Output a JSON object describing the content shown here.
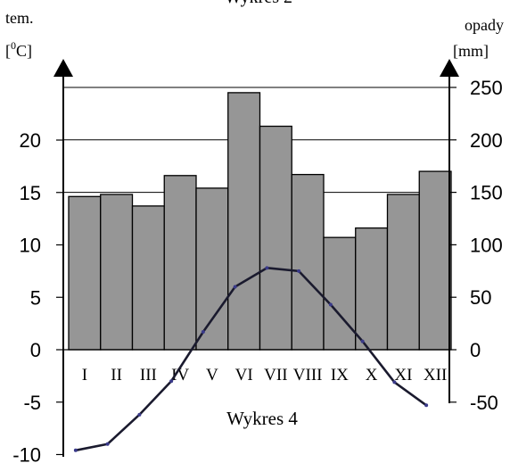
{
  "chart_data": {
    "type": "bar",
    "title": "Wykres 2",
    "caption": "Wykres 4",
    "left_axis": {
      "label_line1": "tem.",
      "label_line2": "[0C]",
      "label_prefix": "[",
      "label_sup": "0",
      "label_suffix": "C]",
      "ticks": [
        "20",
        "15",
        "10",
        "5",
        "0",
        "-5",
        "-10"
      ],
      "tick_values": [
        20,
        15,
        10,
        5,
        0,
        -5,
        -10
      ],
      "range": [
        -10,
        25
      ]
    },
    "right_axis": {
      "label_line1": "opady",
      "label_line2": "[mm]",
      "ticks": [
        "250",
        "200",
        "150",
        "100",
        "50",
        "0",
        "-50"
      ],
      "tick_values": [
        250,
        200,
        150,
        100,
        50,
        0,
        -50
      ],
      "range": [
        -100,
        250
      ]
    },
    "categories": [
      "I",
      "II",
      "III",
      "IV",
      "V",
      "VI",
      "VII",
      "VIII",
      "IX",
      "X",
      "XI",
      "XII"
    ],
    "series": [
      {
        "axis": "right",
        "type": "bar",
        "color": "#969696",
        "values": [
          146,
          148,
          137,
          166,
          154,
          245,
          213,
          167,
          107,
          116,
          148,
          170
        ]
      },
      {
        "axis": "left",
        "type": "line",
        "color": "#1a1a2e",
        "values": [
          -9.6,
          -9.0,
          -6.2,
          -3.0,
          1.7,
          6.0,
          7.8,
          7.5,
          4.3,
          0.8,
          -3.1,
          -5.3
        ]
      }
    ],
    "grid_y": [
      250,
      200,
      150
    ],
    "colors": {
      "bars": "#969696",
      "bar_stroke": "#000000",
      "line": "#1a1a2e",
      "markers": "#3a3a8a"
    }
  }
}
